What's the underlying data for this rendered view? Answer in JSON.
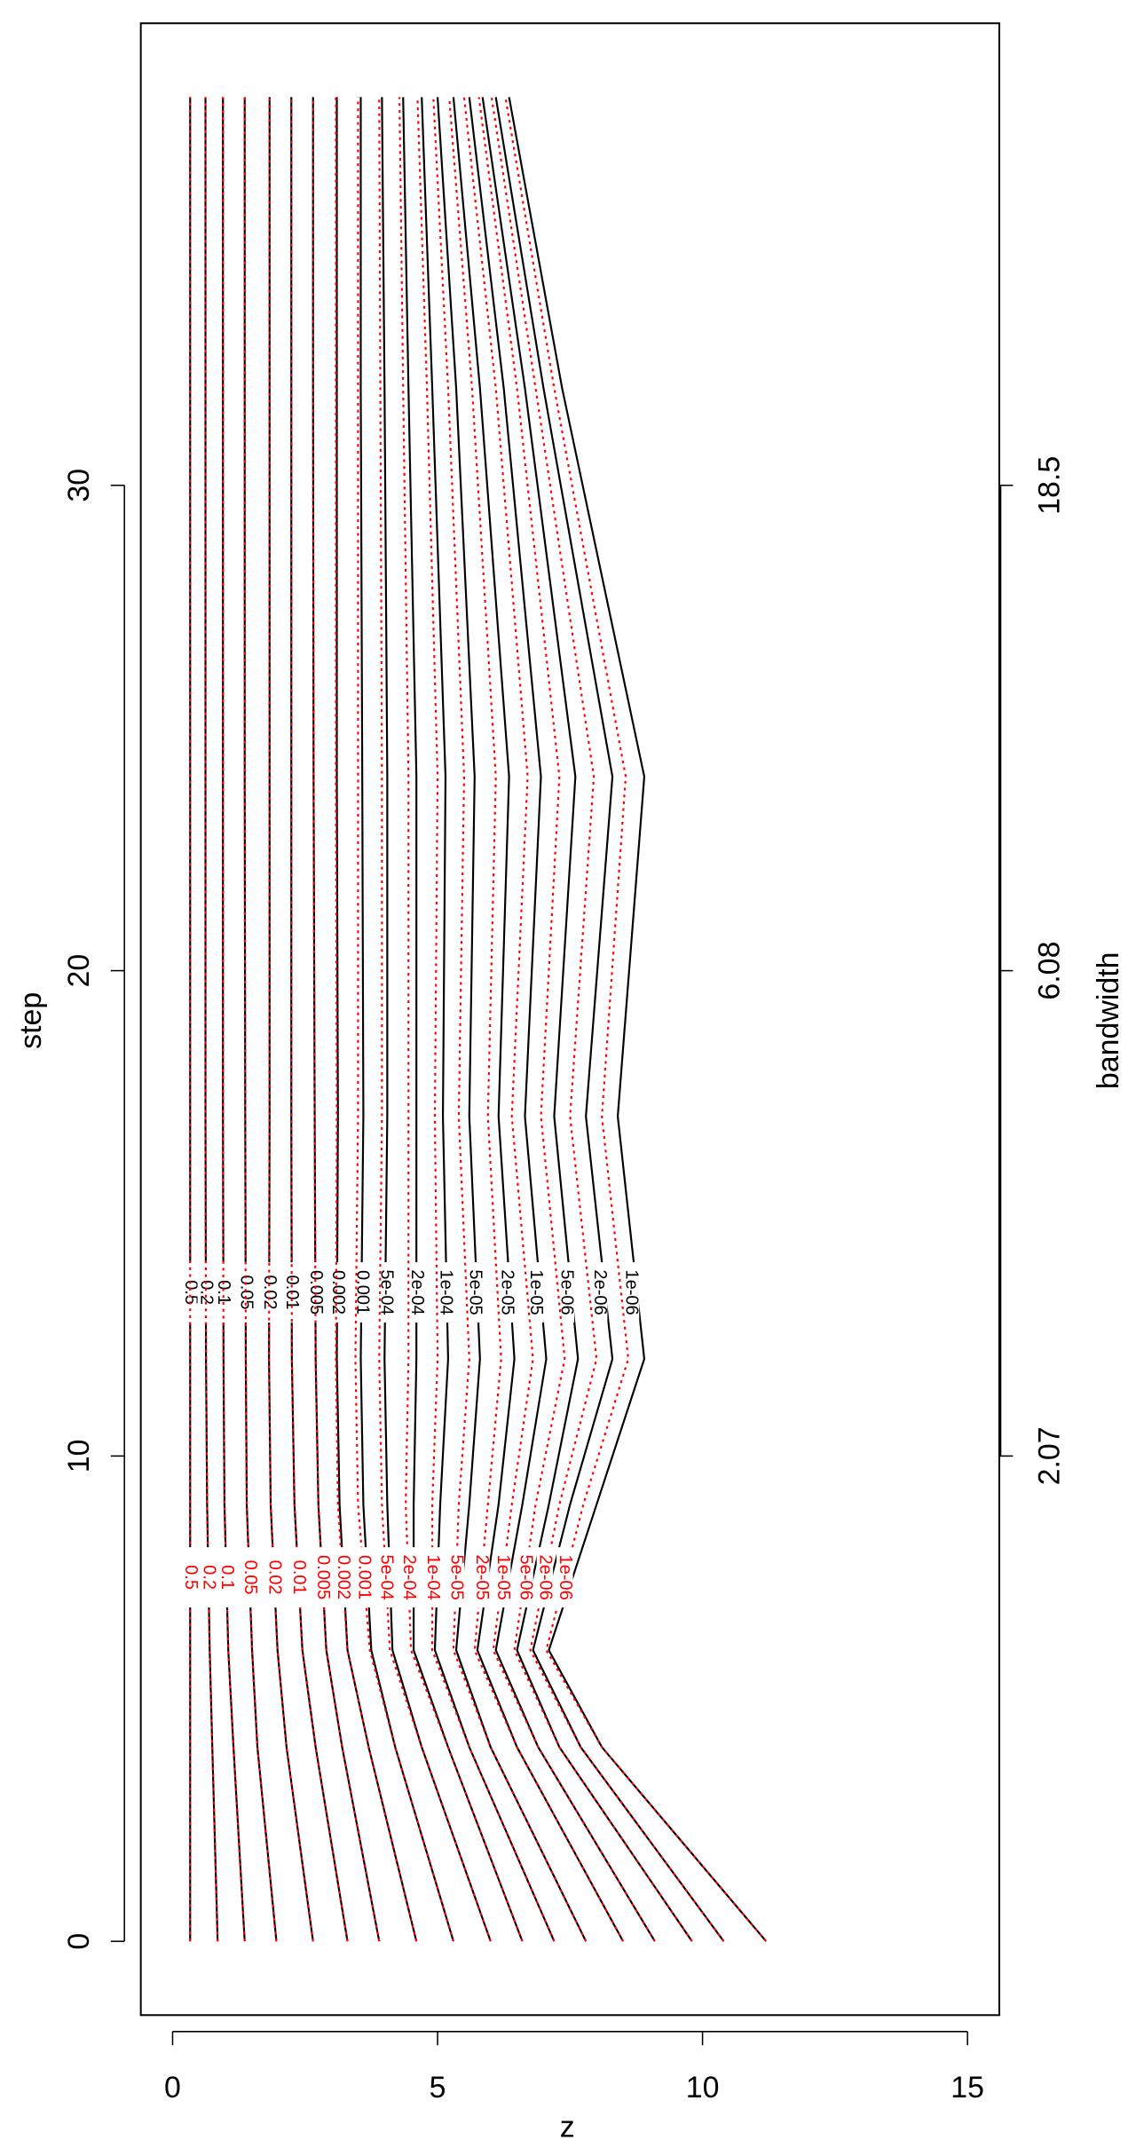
{
  "chart_data": {
    "type": "contour",
    "orientation": "horizontal",
    "x_label": "step",
    "y_label": "z",
    "x2_label": "bandwidth",
    "x": [
      0,
      4,
      6,
      9,
      12,
      17,
      24,
      32,
      38
    ],
    "xlim": [
      -1.52,
      39.52
    ],
    "xticks": [
      0,
      10,
      20,
      30
    ],
    "x2lim": [
      -1.52,
      39.52
    ],
    "x2ticks": [
      {
        "value": 10,
        "label": "2.07"
      },
      {
        "value": 20,
        "label": "6.08"
      },
      {
        "value": 30,
        "label": "18.5"
      }
    ],
    "ylim": [
      -0.6,
      15.6
    ],
    "yticks": [
      0,
      5,
      10,
      15
    ],
    "series": [
      {
        "name": "0.5",
        "color": "#000000",
        "values": [
          0.33,
          0.33,
          0.33,
          0.33,
          0.33,
          0.33,
          0.33,
          0.33,
          0.33
        ]
      },
      {
        "name": "0.2",
        "color": "#000000",
        "values": [
          0.85,
          0.75,
          0.7,
          0.65,
          0.63,
          0.62,
          0.62,
          0.62,
          0.62
        ]
      },
      {
        "name": "0.1",
        "color": "#000000",
        "values": [
          1.36,
          1.15,
          1.05,
          0.98,
          0.96,
          0.95,
          0.95,
          0.95,
          0.95
        ]
      },
      {
        "name": "0.05",
        "color": "#000000",
        "values": [
          1.96,
          1.6,
          1.5,
          1.4,
          1.38,
          1.37,
          1.36,
          1.36,
          1.36
        ]
      },
      {
        "name": "0.02",
        "color": "#000000",
        "values": [
          2.65,
          2.15,
          1.98,
          1.85,
          1.82,
          1.83,
          1.83,
          1.83,
          1.83
        ]
      },
      {
        "name": "0.01",
        "color": "#000000",
        "values": [
          3.3,
          2.7,
          2.45,
          2.3,
          2.25,
          2.24,
          2.24,
          2.24,
          2.24
        ]
      },
      {
        "name": "0.005",
        "color": "#000000",
        "values": [
          3.9,
          3.2,
          2.9,
          2.75,
          2.7,
          2.68,
          2.66,
          2.65,
          2.65
        ]
      },
      {
        "name": "0.002",
        "color": "#000000",
        "values": [
          4.6,
          3.7,
          3.3,
          3.15,
          3.1,
          3.12,
          3.1,
          3.1,
          3.1
        ]
      },
      {
        "name": "0.001",
        "color": "#000000",
        "values": [
          5.3,
          4.2,
          3.75,
          3.6,
          3.55,
          3.6,
          3.58,
          3.55,
          3.55
        ]
      },
      {
        "name": "5e-04",
        "color": "#000000",
        "values": [
          6.0,
          4.7,
          4.15,
          4.05,
          4.0,
          4.05,
          4.05,
          4.0,
          3.95
        ]
      },
      {
        "name": "2e-04",
        "color": "#000000",
        "values": [
          6.6,
          5.2,
          4.55,
          4.55,
          4.6,
          4.6,
          4.6,
          4.45,
          4.35
        ]
      },
      {
        "name": "1e-04",
        "color": "#000000",
        "values": [
          7.2,
          5.6,
          4.95,
          5.05,
          5.2,
          5.1,
          5.15,
          4.9,
          4.7
        ]
      },
      {
        "name": "5e-05",
        "color": "#000000",
        "values": [
          7.8,
          6.0,
          5.35,
          5.6,
          5.8,
          5.6,
          5.7,
          5.35,
          5.0
        ]
      },
      {
        "name": "2e-05",
        "color": "#000000",
        "values": [
          8.5,
          6.5,
          5.75,
          6.15,
          6.45,
          6.15,
          6.35,
          5.8,
          5.3
        ]
      },
      {
        "name": "1e-05",
        "color": "#000000",
        "values": [
          9.1,
          6.9,
          6.1,
          6.6,
          7.05,
          6.65,
          6.95,
          6.25,
          5.6
        ]
      },
      {
        "name": "5e-06",
        "color": "#000000",
        "values": [
          9.8,
          7.3,
          6.5,
          7.1,
          7.65,
          7.2,
          7.6,
          6.65,
          5.85
        ]
      },
      {
        "name": "2e-06",
        "color": "#000000",
        "values": [
          10.4,
          7.7,
          6.8,
          7.5,
          8.3,
          7.8,
          8.3,
          7.0,
          6.1
        ]
      },
      {
        "name": "1e-06",
        "color": "#000000",
        "values": [
          11.2,
          8.1,
          7.1,
          8.0,
          8.9,
          8.4,
          8.9,
          7.35,
          6.35
        ]
      },
      {
        "name": "0.5",
        "color": "#ff0000",
        "values": [
          0.33,
          0.33,
          0.33,
          0.33,
          0.33,
          0.33,
          0.33,
          0.33,
          0.33
        ]
      },
      {
        "name": "0.2",
        "color": "#ff0000",
        "values": [
          0.85,
          0.75,
          0.7,
          0.65,
          0.63,
          0.62,
          0.62,
          0.62,
          0.62
        ]
      },
      {
        "name": "0.1",
        "color": "#ff0000",
        "values": [
          1.36,
          1.15,
          1.05,
          0.98,
          0.96,
          0.95,
          0.95,
          0.95,
          0.95
        ]
      },
      {
        "name": "0.05",
        "color": "#ff0000",
        "values": [
          1.96,
          1.6,
          1.5,
          1.4,
          1.38,
          1.37,
          1.36,
          1.36,
          1.36
        ]
      },
      {
        "name": "0.02",
        "color": "#ff0000",
        "values": [
          2.65,
          2.15,
          1.98,
          1.85,
          1.82,
          1.83,
          1.83,
          1.83,
          1.83
        ]
      },
      {
        "name": "0.01",
        "color": "#ff0000",
        "values": [
          3.3,
          2.7,
          2.45,
          2.3,
          2.25,
          2.24,
          2.24,
          2.24,
          2.24
        ]
      },
      {
        "name": "0.005",
        "color": "#ff0000",
        "values": [
          3.9,
          3.2,
          2.9,
          2.75,
          2.7,
          2.68,
          2.66,
          2.65,
          2.65
        ]
      },
      {
        "name": "0.002",
        "color": "#ff0000",
        "values": [
          4.6,
          3.7,
          3.3,
          3.12,
          3.08,
          3.1,
          3.08,
          3.08,
          3.08
        ]
      },
      {
        "name": "0.001",
        "color": "#ff0000",
        "values": [
          5.3,
          4.2,
          3.72,
          3.5,
          3.45,
          3.5,
          3.5,
          3.5,
          3.5
        ]
      },
      {
        "name": "5e-04",
        "color": "#ff0000",
        "values": [
          6.0,
          4.7,
          4.1,
          3.95,
          3.9,
          3.95,
          3.95,
          3.92,
          3.9
        ]
      },
      {
        "name": "2e-04",
        "color": "#ff0000",
        "values": [
          6.6,
          5.2,
          4.5,
          4.4,
          4.45,
          4.45,
          4.45,
          4.35,
          4.28
        ]
      },
      {
        "name": "1e-04",
        "color": "#ff0000",
        "values": [
          7.2,
          5.6,
          4.9,
          4.9,
          5.0,
          4.95,
          5.0,
          4.8,
          4.62
        ]
      },
      {
        "name": "5e-05",
        "color": "#ff0000",
        "values": [
          7.8,
          6.0,
          5.3,
          5.4,
          5.6,
          5.4,
          5.5,
          5.2,
          4.92
        ]
      },
      {
        "name": "2e-05",
        "color": "#ff0000",
        "values": [
          8.5,
          6.5,
          5.7,
          5.95,
          6.2,
          5.95,
          6.1,
          5.65,
          5.22
        ]
      },
      {
        "name": "1e-05",
        "color": "#ff0000",
        "values": [
          9.1,
          6.9,
          6.05,
          6.4,
          6.8,
          6.4,
          6.7,
          6.1,
          5.5
        ]
      },
      {
        "name": "5e-06",
        "color": "#ff0000",
        "values": [
          9.8,
          7.3,
          6.45,
          6.85,
          7.4,
          6.95,
          7.3,
          6.5,
          5.78
        ]
      },
      {
        "name": "2e-06",
        "color": "#ff0000",
        "values": [
          10.4,
          7.7,
          6.75,
          7.3,
          8.0,
          7.5,
          7.95,
          6.85,
          6.02
        ]
      },
      {
        "name": "1e-06",
        "color": "#ff0000",
        "values": [
          11.2,
          8.1,
          7.05,
          7.75,
          8.6,
          8.1,
          8.55,
          7.2,
          6.28
        ]
      }
    ]
  }
}
